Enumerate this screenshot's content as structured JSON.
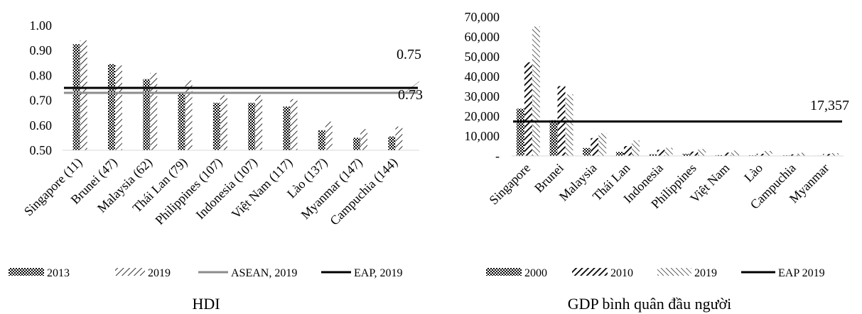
{
  "colors": {
    "axis": "#d9d9d9",
    "asean_line": "#8c8c8c",
    "eap_line": "#000000",
    "bar_fill": "#000000"
  },
  "chart_data": [
    {
      "type": "bar",
      "caption": "HDI",
      "categories": [
        "Singapore (11)",
        "Brunei (47)",
        "Malaysia (62)",
        "Thái Lan (79)",
        "Philippines (107)",
        "Indonesia (107)",
        "Việt Nam (117)",
        "Lào (137)",
        "Myanmar (147)",
        "Campuchia (144)"
      ],
      "series": [
        {
          "name": "2013",
          "pattern": "checker",
          "values": [
            0.925,
            0.845,
            0.785,
            0.73,
            0.69,
            0.69,
            0.675,
            0.58,
            0.55,
            0.555
          ]
        },
        {
          "name": "2019",
          "pattern": "diag",
          "values": [
            0.94,
            0.84,
            0.81,
            0.78,
            0.72,
            0.72,
            0.705,
            0.615,
            0.585,
            0.595
          ]
        }
      ],
      "reference_lines": [
        {
          "name": "ASEAN, 2019",
          "value": 0.73,
          "label": "0.73",
          "color": "#8c8c8c"
        },
        {
          "name": "EAP, 2019",
          "value": 0.75,
          "label": "0.75",
          "color": "#000000"
        }
      ],
      "ylim": [
        0.5,
        1.0
      ],
      "yticks": [
        "0.50",
        "0.60",
        "0.70",
        "0.80",
        "0.90",
        "1.00"
      ],
      "legend": {
        "position": "bottom",
        "items": [
          "2013",
          "2019",
          "ASEAN, 2019",
          "EAP, 2019"
        ]
      },
      "grid": false
    },
    {
      "type": "bar",
      "caption": "GDP bình quân đầu người",
      "categories": [
        "Singapore",
        "Brunei",
        "Malaysia",
        "Thái Lan",
        "Indonesia",
        "Philippines",
        "Việt Nam",
        "Lào",
        "Campuchia",
        "Myanmar"
      ],
      "series": [
        {
          "name": "2000",
          "pattern": "checker",
          "values": [
            23800,
            18000,
            4000,
            2000,
            800,
            1000,
            400,
            300,
            300,
            200
          ]
        },
        {
          "name": "2010",
          "pattern": "thickdiag",
          "values": [
            47200,
            35200,
            9000,
            5000,
            3100,
            2200,
            1700,
            1100,
            800,
            1000
          ]
        },
        {
          "name": "2019",
          "pattern": "backdiag",
          "values": [
            65200,
            31000,
            11400,
            7800,
            4100,
            3500,
            2700,
            2500,
            1600,
            1400
          ]
        }
      ],
      "reference_lines": [
        {
          "name": "EAP 2019",
          "value": 17357,
          "label": "17,357",
          "color": "#000000"
        }
      ],
      "ylim": [
        0,
        70000
      ],
      "yticks": [
        "-",
        "10,000",
        "20,000",
        "30,000",
        "40,000",
        "50,000",
        "60,000",
        "70,000"
      ],
      "legend": {
        "position": "bottom",
        "items": [
          "2000",
          "2010",
          "2019",
          "EAP 2019"
        ]
      },
      "grid": false
    }
  ]
}
